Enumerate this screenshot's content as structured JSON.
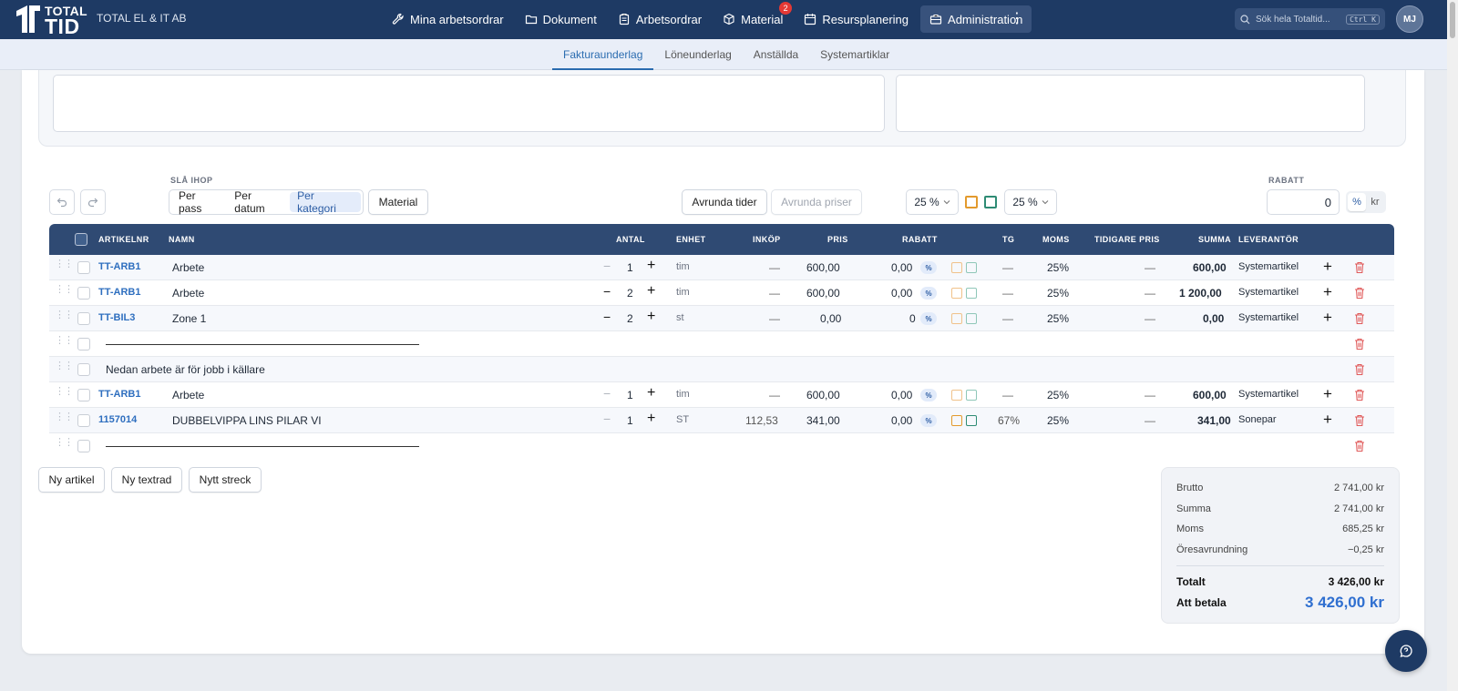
{
  "app": {
    "logo_line1": "TOTAL",
    "logo_line2": "TID",
    "company": "TOTAL EL & IT AB"
  },
  "nav": {
    "items": [
      {
        "label": "Mina arbetsordrar",
        "icon": "wrench-icon"
      },
      {
        "label": "Dokument",
        "icon": "folder-icon"
      },
      {
        "label": "Arbetsordrar",
        "icon": "clipboard-icon"
      },
      {
        "label": "Material",
        "icon": "box-icon",
        "badge": "2"
      },
      {
        "label": "Resursplanering",
        "icon": "calendar-icon"
      },
      {
        "label": "Administration",
        "icon": "briefcase-icon",
        "active": true
      }
    ],
    "more": "⋮"
  },
  "search": {
    "placeholder": "Sök hela Totaltid...",
    "shortcut": "Ctrl K"
  },
  "user": {
    "initials": "MJ"
  },
  "subtabs": [
    {
      "label": "Fakturaunderlag",
      "active": true
    },
    {
      "label": "Löneunderlag"
    },
    {
      "label": "Anställda"
    },
    {
      "label": "Systemartiklar"
    }
  ],
  "toolbar": {
    "merge_label": "SLÅ IHOP",
    "merge_options": [
      "Per pass",
      "Per datum",
      "Per kategori"
    ],
    "merge_active": "Per kategori",
    "material": "Material",
    "round_times": "Avrunda tider",
    "round_prices": "Avrunda priser",
    "vat1": "25 %",
    "vat2": "25 %",
    "discount_label": "RABATT",
    "discount_value": "0",
    "unit_pct": "%",
    "unit_kr": "kr"
  },
  "table": {
    "headers": {
      "artnr": "ARTIKELNR",
      "name": "NAMN",
      "qty": "ANTAL",
      "unit": "ENHET",
      "purchase": "INKÖP",
      "price": "PRIS",
      "discount": "RABATT",
      "tg": "TG",
      "vat": "MOMS",
      "prev_price": "TIDIGARE PRIS",
      "sum": "SUMMA",
      "supplier": "LEVERANTÖR"
    },
    "rows": [
      {
        "artnr": "TT-ARB1",
        "name": "Arbete",
        "minus": "−",
        "qty": "1",
        "plus": "+",
        "unit": "tim",
        "purchase": "—",
        "price": "600,00",
        "discount": "0,00",
        "pct": "%",
        "tg": "—",
        "vat": "25%",
        "prev": "—",
        "sum": "600,00",
        "supplier": "Systemartikel",
        "add": "+"
      },
      {
        "artnr": "TT-ARB1",
        "name": "Arbete",
        "minus": "−",
        "qty": "2",
        "plus": "+",
        "unit": "tim",
        "purchase": "—",
        "price": "600,00",
        "discount": "0,00",
        "pct": "%",
        "tg": "—",
        "vat": "25%",
        "prev": "—",
        "sum": "1 200,00",
        "supplier": "Systemartikel",
        "add": "+"
      },
      {
        "artnr": "TT-BIL3",
        "name": "Zone 1",
        "minus": "−",
        "qty": "2",
        "plus": "+",
        "unit": "st",
        "purchase": "—",
        "price": "0,00",
        "discount": "0",
        "pct": "%",
        "tg": "—",
        "vat": "25%",
        "prev": "—",
        "sum": "0,00",
        "supplier": "Systemartikel",
        "add": "+"
      },
      {
        "text_row": "Nedan arbete är för jobb i källare"
      },
      {
        "artnr": "TT-ARB1",
        "name": "Arbete",
        "minus": "−",
        "qty": "1",
        "plus": "+",
        "unit": "tim",
        "purchase": "—",
        "price": "600,00",
        "discount": "0,00",
        "pct": "%",
        "tg": "—",
        "vat": "25%",
        "prev": "—",
        "sum": "600,00",
        "supplier": "Systemartikel",
        "add": "+"
      },
      {
        "artnr": "1157014",
        "name": "DUBBELVIPPA LINS PILAR VI",
        "minus": "−",
        "qty": "1",
        "plus": "+",
        "unit": "ST",
        "purchase": "112,53",
        "price": "341,00",
        "discount": "0,00",
        "pct": "%",
        "tg": "67%",
        "vat": "25%",
        "prev": "—",
        "sum": "341,00",
        "supplier": "Sonepar",
        "add": "+"
      }
    ]
  },
  "actions": {
    "new_article": "Ny artikel",
    "new_text": "Ny textrad",
    "new_line": "Nytt streck"
  },
  "totals": {
    "gross_label": "Brutto",
    "gross": "2 741,00 kr",
    "sum_label": "Summa",
    "sum": "2 741,00 kr",
    "vat_label": "Moms",
    "vat": "685,25 kr",
    "rounding_label": "Öresavrundning",
    "rounding": "−0,25 kr",
    "total_label": "Totalt",
    "total": "3 426,00 kr",
    "pay_label": "Att betala",
    "pay": "3 426,00 kr"
  },
  "colors": {
    "nav_bg": "#1e3a64",
    "accent": "#2f6fbf",
    "orange": "#e39a2d",
    "green": "#2e8b74",
    "danger": "#e05a5a"
  }
}
